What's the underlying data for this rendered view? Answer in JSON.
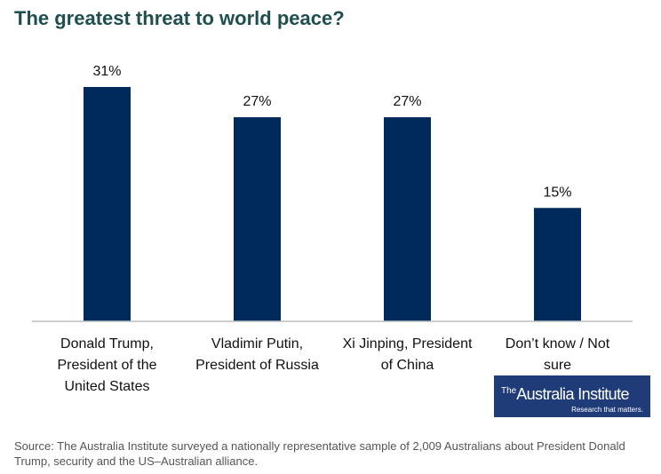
{
  "chart_data": {
    "type": "bar",
    "title": "The greatest threat to world peace?",
    "categories": [
      "Donald Trump, President of the United States",
      "Vladimir Putin, President of Russia",
      "Xi Jinping, President of China",
      "Don’t know / Not sure"
    ],
    "category_lines": [
      [
        "Donald Trump,",
        "President of the",
        "United States"
      ],
      [
        "Vladimir Putin,",
        "President of Russia"
      ],
      [
        "Xi Jinping, President",
        "of China"
      ],
      [
        "Don’t know / Not",
        "sure"
      ]
    ],
    "values": [
      31,
      27,
      27,
      15
    ],
    "data_labels": [
      "31%",
      "27%",
      "27%",
      "15%"
    ],
    "ylim": [
      0,
      31
    ],
    "xlabel": "",
    "ylabel": "",
    "grid": false,
    "colors": {
      "bar": "#002a5c",
      "axis": "#bfbfbf",
      "title": "#1f4e4f"
    }
  },
  "logo": {
    "prefix": "The",
    "name": "Australia Institute",
    "tagline": "Research that matters."
  },
  "source": "Source: The Australia Institute surveyed a nationally representative sample of 2,009 Australians about President Donald Trump, security and the US–Australian alliance."
}
